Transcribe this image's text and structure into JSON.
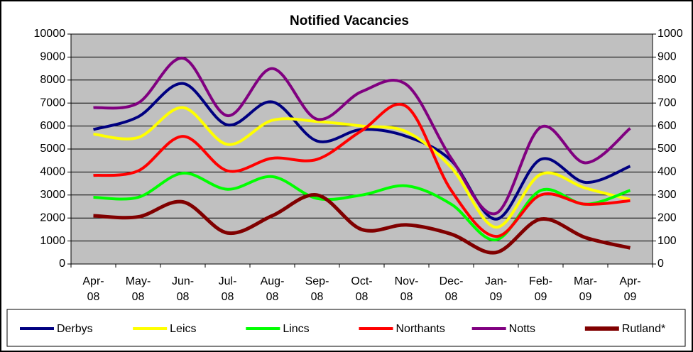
{
  "chart_data": {
    "type": "line",
    "title": "Notified Vacancies",
    "categories": [
      "Apr-08",
      "May-08",
      "Jun-08",
      "Jul-08",
      "Aug-08",
      "Sep-08",
      "Oct-08",
      "Nov-08",
      "Dec-08",
      "Jan-09",
      "Feb-09",
      "Mar-09",
      "Apr-09"
    ],
    "series": [
      {
        "name": "Derbys",
        "color": "#000080",
        "values": [
          5850,
          6400,
          7850,
          6050,
          7050,
          5350,
          5850,
          5550,
          4500,
          1950,
          4550,
          3550,
          4250
        ]
      },
      {
        "name": "Leics",
        "color": "#ffff00",
        "values": [
          5650,
          5500,
          6800,
          5200,
          6250,
          6200,
          6000,
          5750,
          4200,
          1600,
          3900,
          3300,
          2800
        ]
      },
      {
        "name": "Lincs",
        "color": "#00ff00",
        "values": [
          2900,
          2900,
          3950,
          3250,
          3800,
          2850,
          3000,
          3400,
          2600,
          1050,
          3200,
          2600,
          3200
        ]
      },
      {
        "name": "Northants",
        "color": "#ff0000",
        "values": [
          3850,
          4050,
          5550,
          4050,
          4600,
          4550,
          5800,
          6850,
          3200,
          1200,
          3000,
          2600,
          2750
        ]
      },
      {
        "name": "Notts",
        "color": "#800080",
        "values": [
          6800,
          7000,
          8950,
          6450,
          8500,
          6300,
          7500,
          7800,
          4600,
          2200,
          5950,
          4400,
          5900
        ]
      },
      {
        "name": "Rutland*",
        "color": "#800000",
        "axis": "y2",
        "values": [
          210,
          205,
          270,
          135,
          210,
          300,
          150,
          170,
          130,
          50,
          195,
          115,
          70
        ]
      }
    ],
    "ylim": [
      0,
      10000
    ],
    "yticks": [
      0,
      1000,
      2000,
      3000,
      4000,
      5000,
      6000,
      7000,
      8000,
      9000,
      10000
    ],
    "y2lim": [
      0,
      1000
    ],
    "y2ticks": [
      0,
      100,
      200,
      300,
      400,
      500,
      600,
      700,
      800,
      900,
      1000
    ],
    "grid": true,
    "legend": "bottom"
  }
}
